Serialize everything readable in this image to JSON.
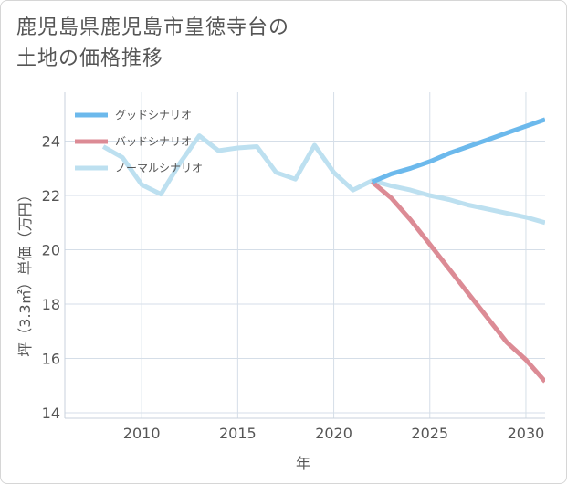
{
  "title_line1": "鹿児島県鹿児島市皇徳寺台の",
  "title_line2": "土地の価格推移",
  "chart_data": {
    "type": "line",
    "title": "鹿児島県鹿児島市皇徳寺台の土地の価格推移",
    "xlabel": "年",
    "ylabel": "坪（3.3㎡）単価（万円）",
    "xlim": [
      2006,
      2031
    ],
    "ylim": [
      13.8,
      25.8
    ],
    "xticks": [
      2010,
      2015,
      2020,
      2025,
      2030
    ],
    "yticks": [
      14,
      16,
      18,
      20,
      22,
      24
    ],
    "legend_position": "top-left",
    "series": [
      {
        "name": "グッドシナリオ",
        "color": "#6cb9ec",
        "points": [
          [
            2022,
            22.5
          ],
          [
            2023,
            22.8
          ],
          [
            2024,
            23.0
          ],
          [
            2025,
            23.25
          ],
          [
            2026,
            23.55
          ],
          [
            2027,
            23.8
          ],
          [
            2028,
            24.05
          ],
          [
            2029,
            24.3
          ],
          [
            2030,
            24.55
          ],
          [
            2031,
            24.8
          ]
        ]
      },
      {
        "name": "バッドシナリオ",
        "color": "#dc8b95",
        "points": [
          [
            2022,
            22.5
          ],
          [
            2023,
            21.9
          ],
          [
            2024,
            21.1
          ],
          [
            2025,
            20.2
          ],
          [
            2026,
            19.3
          ],
          [
            2027,
            18.4
          ],
          [
            2028,
            17.5
          ],
          [
            2029,
            16.6
          ],
          [
            2030,
            15.95
          ],
          [
            2031,
            15.15
          ]
        ]
      },
      {
        "name": "ノーマルシナリオ",
        "color": "#bde0f0",
        "points": [
          [
            2008,
            23.8
          ],
          [
            2009,
            23.4
          ],
          [
            2010,
            22.4
          ],
          [
            2011,
            22.05
          ],
          [
            2012,
            23.2
          ],
          [
            2013,
            24.2
          ],
          [
            2014,
            23.65
          ],
          [
            2015,
            23.75
          ],
          [
            2016,
            23.8
          ],
          [
            2017,
            22.85
          ],
          [
            2018,
            22.6
          ],
          [
            2019,
            23.85
          ],
          [
            2020,
            22.85
          ],
          [
            2021,
            22.2
          ],
          [
            2022,
            22.55
          ],
          [
            2023,
            22.35
          ],
          [
            2024,
            22.2
          ],
          [
            2025,
            22.0
          ],
          [
            2026,
            21.85
          ],
          [
            2027,
            21.65
          ],
          [
            2028,
            21.5
          ],
          [
            2029,
            21.35
          ],
          [
            2030,
            21.2
          ],
          [
            2031,
            21.0
          ]
        ]
      }
    ]
  }
}
